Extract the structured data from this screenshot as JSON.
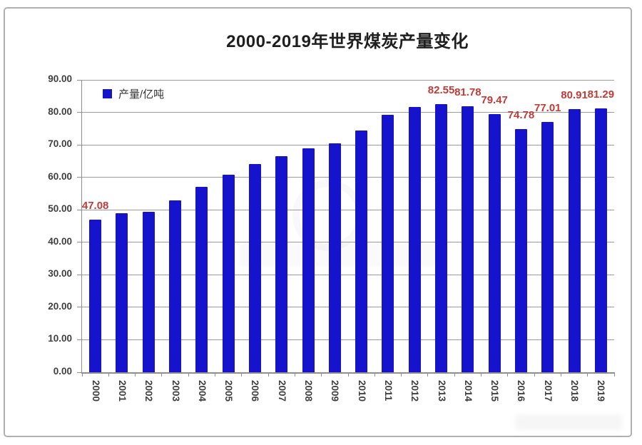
{
  "panel": {
    "background": "#ffffff",
    "border_color": "#b0b0b0"
  },
  "chart_data": {
    "type": "bar",
    "title": "2000-2019年世界煤炭产量变化",
    "xlabel": "",
    "ylabel": "",
    "ylim": [
      0,
      90
    ],
    "ytick_step": 10,
    "ytick_labels": [
      "0.00",
      "10.00",
      "20.00",
      "30.00",
      "40.00",
      "50.00",
      "60.00",
      "70.00",
      "80.00",
      "90.00"
    ],
    "grid": true,
    "legend_position": "top-left-inside",
    "legend": {
      "label": "产量/亿吨",
      "swatch_color": "#1513cb"
    },
    "bar_color": "#1513cb",
    "data_label_color": "#c23b36",
    "categories": [
      "2000",
      "2001",
      "2002",
      "2003",
      "2004",
      "2005",
      "2006",
      "2007",
      "2008",
      "2009",
      "2010",
      "2011",
      "2012",
      "2013",
      "2014",
      "2015",
      "2016",
      "2017",
      "2018",
      "2019"
    ],
    "series": [
      {
        "name": "产量/亿吨",
        "values": [
          47.08,
          49.0,
          49.5,
          53.0,
          57.1,
          60.8,
          64.0,
          66.5,
          69.0,
          70.4,
          74.5,
          79.3,
          81.6,
          82.55,
          81.78,
          79.47,
          74.78,
          77.01,
          80.91,
          81.29
        ],
        "data_labels": [
          "47.08",
          "",
          "",
          "",
          "",
          "",
          "",
          "",
          "",
          "",
          "",
          "",
          "",
          "82.55",
          "81.78",
          "79.47",
          "74.78",
          "77.01",
          "80.91",
          "81.29"
        ]
      }
    ]
  }
}
